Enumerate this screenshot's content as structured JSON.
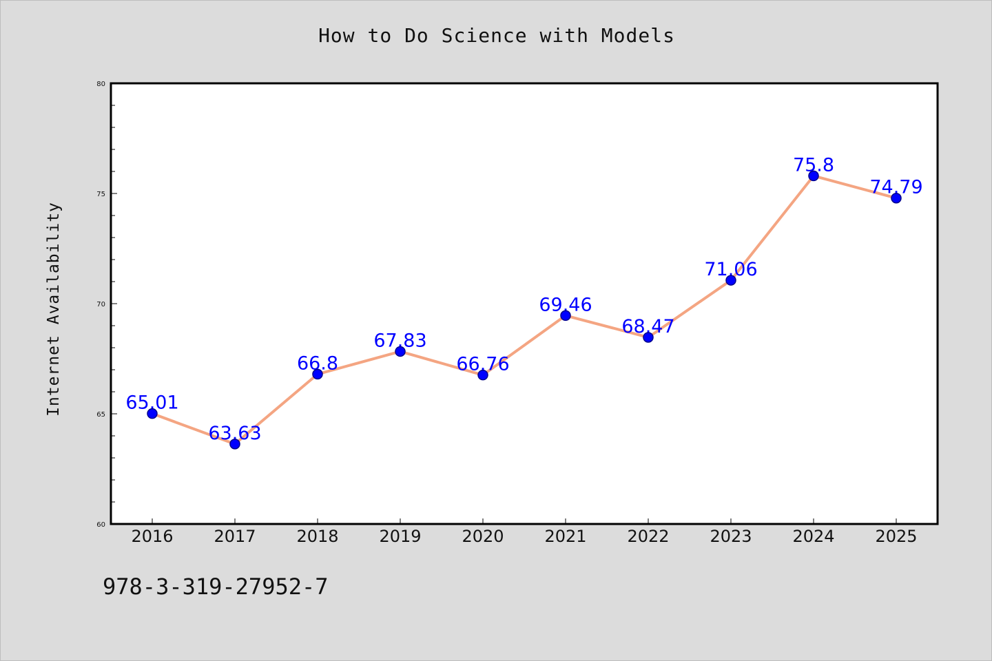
{
  "colors": {
    "background": "#dcdcdc",
    "plot_background": "#ffffff",
    "line": "#f4a582",
    "marker": "#0000ff",
    "marker_edge": "#00008b",
    "data_label": "#0000ff"
  },
  "footer": {
    "code": "978-3-319-27952-7"
  },
  "chart_data": {
    "type": "line",
    "title": "How to Do Science with Models",
    "xlabel": "",
    "ylabel": "Internet Availability",
    "categories": [
      "2016",
      "2017",
      "2018",
      "2019",
      "2020",
      "2021",
      "2022",
      "2023",
      "2024",
      "2025"
    ],
    "series": [
      {
        "values": [
          65.01,
          63.63,
          66.8,
          67.83,
          66.76,
          69.46,
          68.47,
          71.06,
          75.8,
          74.79
        ],
        "labels": [
          "65.01",
          "63.63",
          "66.8",
          "67.83",
          "66.76",
          "69.46",
          "68.47",
          "71.06",
          "75.8",
          "74.79"
        ]
      }
    ],
    "ylim": [
      60,
      80
    ],
    "yticks": [
      "60",
      "65",
      "70",
      "75",
      "80"
    ],
    "grid": false,
    "legend": "none"
  }
}
